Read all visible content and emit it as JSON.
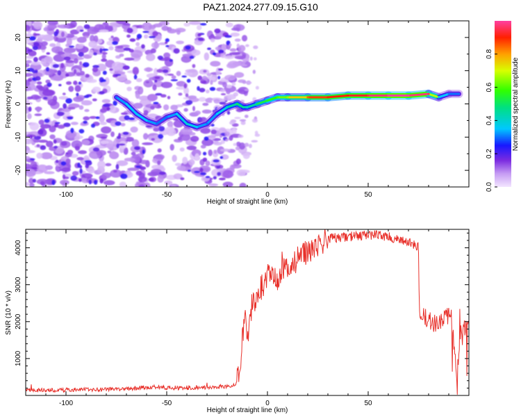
{
  "figure": {
    "title": "PAZ1.2024.277.09.15.G10"
  },
  "chart_data": [
    {
      "type": "heatmap",
      "title": "PAZ1.2024.277.09.15.G10",
      "xlabel": "Height of straight line (km)",
      "ylabel": "Frequency (Hz)",
      "xlim": [
        -120,
        100
      ],
      "ylim": [
        -25,
        25
      ],
      "xticks": [
        -100,
        -50,
        0,
        50
      ],
      "yticks": [
        -20,
        -10,
        0,
        10,
        20
      ],
      "colorbar": {
        "label": "Normalized spectral amplitude",
        "range": [
          0,
          1
        ],
        "ticks": [
          "0.0",
          "0.2",
          "0.4",
          "0.6",
          "0.8"
        ]
      },
      "ridge": {
        "x": [
          -75,
          -70,
          -65,
          -60,
          -55,
          -50,
          -45,
          -40,
          -35,
          -30,
          -25,
          -20,
          -15,
          -12,
          -10,
          -5,
          0,
          5,
          10,
          20,
          30,
          40,
          50,
          60,
          70,
          80,
          85,
          90,
          95
        ],
        "y": [
          2,
          0,
          -3,
          -5,
          -6,
          -4,
          -3,
          -6,
          -7,
          -6,
          -3,
          -1,
          0,
          -1,
          -1,
          0,
          1,
          2,
          2,
          2,
          2,
          2.5,
          2.5,
          2.5,
          2.5,
          3,
          2,
          3,
          3
        ],
        "amplitude": [
          0.3,
          0.35,
          0.35,
          0.35,
          0.3,
          0.3,
          0.35,
          0.4,
          0.35,
          0.3,
          0.35,
          0.4,
          0.5,
          0.45,
          0.4,
          0.5,
          0.55,
          0.6,
          0.65,
          0.85,
          0.9,
          0.9,
          0.95,
          1.0,
          1.0,
          0.95,
          0.4,
          0.3,
          0.3
        ]
      }
    },
    {
      "type": "line",
      "xlabel": "Height of straight line (km)",
      "ylabel": "SNR (10 * v/v)",
      "xlim": [
        -120,
        100
      ],
      "ylim": [
        0,
        4500
      ],
      "xticks": [
        -100,
        -50,
        0,
        50
      ],
      "yticks": [
        1000,
        2000,
        3000,
        4000
      ],
      "color": "#e8302a",
      "x": [
        -120,
        -110,
        -100,
        -90,
        -80,
        -70,
        -60,
        -55,
        -50,
        -40,
        -30,
        -20,
        -16,
        -14,
        -13,
        -12,
        -11,
        -10,
        -8,
        -6,
        -4,
        -2,
        0,
        2,
        5,
        8,
        10,
        15,
        20,
        25,
        30,
        40,
        50,
        55,
        60,
        65,
        70,
        72,
        75,
        75.5,
        80,
        85,
        90,
        92,
        94,
        96,
        100
      ],
      "y": [
        150,
        140,
        150,
        160,
        170,
        180,
        220,
        240,
        200,
        200,
        210,
        250,
        300,
        600,
        1200,
        1800,
        2300,
        1400,
        2400,
        2600,
        2900,
        3000,
        3200,
        3300,
        3000,
        3500,
        3300,
        3700,
        3900,
        4100,
        4250,
        4300,
        4350,
        4350,
        4300,
        4200,
        4150,
        4100,
        4000,
        2200,
        2050,
        1900,
        2200,
        1800,
        400,
        1900,
        1800
      ]
    }
  ]
}
